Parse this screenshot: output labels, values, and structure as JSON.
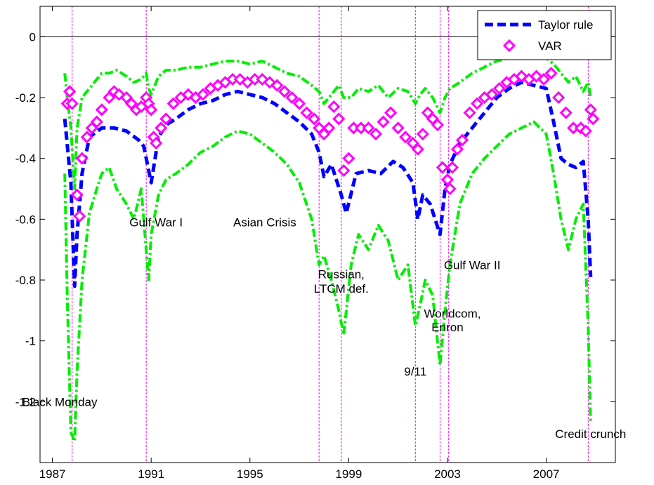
{
  "chart_data": {
    "type": "line",
    "title": "",
    "xlabel": "",
    "ylabel": "",
    "xlim": [
      1986.5,
      2009.8
    ],
    "ylim": [
      -1.4,
      0.1
    ],
    "x_ticks": [
      1987,
      1991,
      1995,
      1999,
      2003,
      2007
    ],
    "x_tick_labels": [
      "1987",
      "1991",
      "1995",
      "1999",
      "2003",
      "2007"
    ],
    "y_ticks": [
      0,
      -0.2,
      -0.4,
      -0.6,
      -0.8,
      -1,
      -1.2
    ],
    "y_tick_labels": [
      "0",
      "-0.2",
      "-0.4",
      "-0.6",
      "-0.8",
      "-1",
      "-1.2"
    ],
    "reference_line_y": 0,
    "legend": {
      "position": "top-right",
      "entries": [
        {
          "label": "Taylor rule",
          "style": "dashed",
          "color": "#0000ff"
        },
        {
          "label": "VAR",
          "style": "diamond-markers",
          "color": "#ff00ff"
        }
      ]
    },
    "colors": {
      "taylor_rule": "#0000ff",
      "var": "#ff00ff",
      "bands": "#00ee00",
      "event_lines": "#ff00ff"
    },
    "event_lines": [
      1987.8,
      1990.8,
      1997.8,
      1998.7,
      2001.7,
      2002.7,
      2003.05,
      2008.7
    ],
    "events": [
      {
        "label": "Black Monday",
        "x": 1987.3,
        "y": -1.2
      },
      {
        "label": "Gulf War I",
        "x": 1991.2,
        "y": -0.61
      },
      {
        "label": "Asian Crisis",
        "x": 1995.6,
        "y": -0.61
      },
      {
        "label": "Russian,",
        "x": 1998.7,
        "y": -0.78
      },
      {
        "label": "LTCM def.",
        "x": 1998.7,
        "y": -0.828
      },
      {
        "label": "Gulf War II",
        "x": 2004.0,
        "y": -0.75
      },
      {
        "label": "Worldcom,",
        "x": 2003.2,
        "y": -0.91
      },
      {
        "label": "Enron",
        "x": 2003.0,
        "y": -0.955
      },
      {
        "label": "9/11",
        "x": 2001.7,
        "y": -1.1
      },
      {
        "label": "Credit crunch",
        "x": 2008.8,
        "y": -1.305
      }
    ],
    "series": [
      {
        "name": "Taylor rule",
        "x": [
          1987.5,
          1987.75,
          1987.9,
          1988.0,
          1988.2,
          1988.5,
          1989.0,
          1989.5,
          1990.0,
          1990.5,
          1990.7,
          1990.9,
          1991.0,
          1991.3,
          1991.6,
          1992.0,
          1992.5,
          1993.0,
          1993.5,
          1994.0,
          1994.5,
          1995.0,
          1995.5,
          1996.0,
          1996.5,
          1997.0,
          1997.5,
          1997.8,
          1998.0,
          1998.3,
          1998.7,
          1998.9,
          1999.3,
          1999.8,
          2000.3,
          2000.8,
          2001.2,
          2001.6,
          2001.8,
          2002.0,
          2002.3,
          2002.7,
          2002.9,
          2003.1,
          2003.5,
          2004.0,
          2004.5,
          2005.0,
          2005.5,
          2006.0,
          2006.5,
          2007.0,
          2007.3,
          2007.6,
          2007.9,
          2008.2,
          2008.5,
          2008.7,
          2008.8
        ],
        "values": [
          -0.27,
          -0.48,
          -0.82,
          -0.65,
          -0.45,
          -0.33,
          -0.3,
          -0.3,
          -0.31,
          -0.34,
          -0.36,
          -0.44,
          -0.48,
          -0.33,
          -0.29,
          -0.27,
          -0.24,
          -0.22,
          -0.21,
          -0.19,
          -0.18,
          -0.19,
          -0.2,
          -0.22,
          -0.25,
          -0.28,
          -0.32,
          -0.38,
          -0.46,
          -0.42,
          -0.52,
          -0.58,
          -0.45,
          -0.44,
          -0.45,
          -0.41,
          -0.43,
          -0.48,
          -0.6,
          -0.52,
          -0.55,
          -0.65,
          -0.5,
          -0.42,
          -0.35,
          -0.3,
          -0.25,
          -0.2,
          -0.17,
          -0.15,
          -0.16,
          -0.17,
          -0.28,
          -0.4,
          -0.42,
          -0.43,
          -0.41,
          -0.6,
          -0.79
        ]
      },
      {
        "name": "VAR",
        "x": [
          1987.6,
          1987.7,
          1987.8,
          1988.0,
          1988.1,
          1988.2,
          1988.4,
          1988.6,
          1988.8,
          1989.0,
          1989.3,
          1989.5,
          1989.7,
          1990.0,
          1990.2,
          1990.4,
          1990.6,
          1990.8,
          1990.9,
          1991.0,
          1991.1,
          1991.2,
          1991.4,
          1991.6,
          1991.9,
          1992.2,
          1992.5,
          1992.8,
          1993.1,
          1993.4,
          1993.7,
          1994.0,
          1994.3,
          1994.6,
          1994.9,
          1995.2,
          1995.5,
          1995.8,
          1996.1,
          1996.4,
          1996.7,
          1997.0,
          1997.3,
          1997.6,
          1997.8,
          1998.0,
          1998.2,
          1998.4,
          1998.6,
          1998.8,
          1999.0,
          1999.2,
          1999.5,
          1999.8,
          2000.1,
          2000.4,
          2000.7,
          2001.0,
          2001.3,
          2001.6,
          2001.8,
          2002.0,
          2002.2,
          2002.4,
          2002.6,
          2002.8,
          2003.0,
          2003.1,
          2003.2,
          2003.4,
          2003.6,
          2003.9,
          2004.2,
          2004.5,
          2004.8,
          2005.1,
          2005.4,
          2005.7,
          2006.0,
          2006.3,
          2006.6,
          2006.9,
          2007.2,
          2007.5,
          2007.8,
          2008.1,
          2008.4,
          2008.6,
          2008.8,
          2008.9
        ],
        "values": [
          -0.22,
          -0.18,
          -0.22,
          -0.52,
          -0.59,
          -0.4,
          -0.33,
          -0.3,
          -0.28,
          -0.24,
          -0.2,
          -0.18,
          -0.19,
          -0.2,
          -0.22,
          -0.24,
          -0.23,
          -0.2,
          -0.22,
          -0.24,
          -0.33,
          -0.35,
          -0.3,
          -0.27,
          -0.22,
          -0.2,
          -0.19,
          -0.2,
          -0.19,
          -0.17,
          -0.16,
          -0.15,
          -0.14,
          -0.14,
          -0.15,
          -0.14,
          -0.14,
          -0.15,
          -0.16,
          -0.18,
          -0.2,
          -0.22,
          -0.25,
          -0.27,
          -0.3,
          -0.32,
          -0.3,
          -0.23,
          -0.27,
          -0.44,
          -0.4,
          -0.3,
          -0.3,
          -0.3,
          -0.32,
          -0.28,
          -0.25,
          -0.3,
          -0.33,
          -0.35,
          -0.37,
          -0.32,
          -0.25,
          -0.27,
          -0.29,
          -0.43,
          -0.47,
          -0.5,
          -0.43,
          -0.37,
          -0.34,
          -0.25,
          -0.22,
          -0.2,
          -0.19,
          -0.17,
          -0.15,
          -0.14,
          -0.13,
          -0.14,
          -0.13,
          -0.14,
          -0.12,
          -0.2,
          -0.25,
          -0.3,
          -0.3,
          -0.31,
          -0.24,
          -0.27
        ]
      },
      {
        "name": "",
        "x": [
          1987.5,
          1987.6,
          1987.75,
          1987.9,
          1988.0,
          1988.2,
          1988.5,
          1988.8,
          1989.0,
          1989.3,
          1989.6,
          1990.0,
          1990.3,
          1990.6,
          1990.8,
          1990.9,
          1991.0,
          1991.3,
          1991.6,
          1992.0,
          1992.5,
          1993.0,
          1993.5,
          1994.0,
          1994.5,
          1995.0,
          1995.5,
          1996.0,
          1996.5,
          1997.0,
          1997.5,
          1997.8,
          1998.0,
          1998.3,
          1998.6,
          1998.8,
          1999.1,
          1999.4,
          1999.8,
          2000.2,
          2000.6,
          2001.0,
          2001.4,
          2001.7,
          2001.9,
          2002.1,
          2002.4,
          2002.7,
          2002.9,
          2003.1,
          2003.5,
          2004.0,
          2004.5,
          2005.0,
          2005.5,
          2006.0,
          2006.5,
          2007.0,
          2007.3,
          2007.6,
          2007.9,
          2008.2,
          2008.5,
          2008.7,
          2008.8
        ],
        "values": [
          -0.12,
          -0.2,
          -0.3,
          -0.5,
          -0.3,
          -0.2,
          -0.17,
          -0.14,
          -0.12,
          -0.12,
          -0.11,
          -0.13,
          -0.15,
          -0.14,
          -0.12,
          -0.17,
          -0.19,
          -0.13,
          -0.11,
          -0.11,
          -0.1,
          -0.1,
          -0.09,
          -0.08,
          -0.08,
          -0.09,
          -0.08,
          -0.1,
          -0.12,
          -0.13,
          -0.16,
          -0.18,
          -0.22,
          -0.19,
          -0.16,
          -0.2,
          -0.2,
          -0.17,
          -0.18,
          -0.16,
          -0.2,
          -0.17,
          -0.18,
          -0.22,
          -0.19,
          -0.17,
          -0.2,
          -0.25,
          -0.2,
          -0.17,
          -0.15,
          -0.12,
          -0.1,
          -0.08,
          -0.07,
          -0.06,
          -0.06,
          -0.07,
          -0.09,
          -0.12,
          -0.15,
          -0.13,
          -0.18,
          -0.15,
          -0.2
        ]
      },
      {
        "name": "",
        "x": [
          1987.5,
          1987.6,
          1987.75,
          1987.9,
          1988.0,
          1988.2,
          1988.5,
          1988.8,
          1989.0,
          1989.3,
          1989.6,
          1990.0,
          1990.3,
          1990.6,
          1990.8,
          1990.9,
          1991.0,
          1991.3,
          1991.6,
          1992.0,
          1992.5,
          1993.0,
          1993.5,
          1994.0,
          1994.5,
          1995.0,
          1995.5,
          1996.0,
          1996.5,
          1997.0,
          1997.5,
          1997.8,
          1998.0,
          1998.3,
          1998.6,
          1998.8,
          1999.1,
          1999.4,
          1999.8,
          2000.2,
          2000.6,
          2001.0,
          2001.4,
          2001.7,
          2001.9,
          2002.1,
          2002.4,
          2002.7,
          2002.9,
          2003.1,
          2003.5,
          2004.0,
          2004.5,
          2005.0,
          2005.5,
          2006.0,
          2006.5,
          2007.0,
          2007.3,
          2007.6,
          2007.9,
          2008.2,
          2008.5,
          2008.7,
          2008.8
        ],
        "values": [
          -0.45,
          -0.85,
          -1.3,
          -1.33,
          -1.1,
          -0.8,
          -0.58,
          -0.5,
          -0.45,
          -0.43,
          -0.5,
          -0.55,
          -0.6,
          -0.5,
          -0.7,
          -0.8,
          -0.65,
          -0.52,
          -0.47,
          -0.45,
          -0.42,
          -0.38,
          -0.36,
          -0.33,
          -0.31,
          -0.32,
          -0.35,
          -0.38,
          -0.42,
          -0.48,
          -0.6,
          -0.75,
          -0.72,
          -0.8,
          -0.9,
          -0.98,
          -0.75,
          -0.65,
          -0.7,
          -0.62,
          -0.67,
          -0.8,
          -0.75,
          -0.95,
          -0.88,
          -0.8,
          -0.85,
          -1.08,
          -0.9,
          -0.75,
          -0.55,
          -0.45,
          -0.4,
          -0.36,
          -0.32,
          -0.3,
          -0.28,
          -0.32,
          -0.45,
          -0.6,
          -0.7,
          -0.6,
          -0.55,
          -0.95,
          -1.27
        ]
      }
    ]
  }
}
